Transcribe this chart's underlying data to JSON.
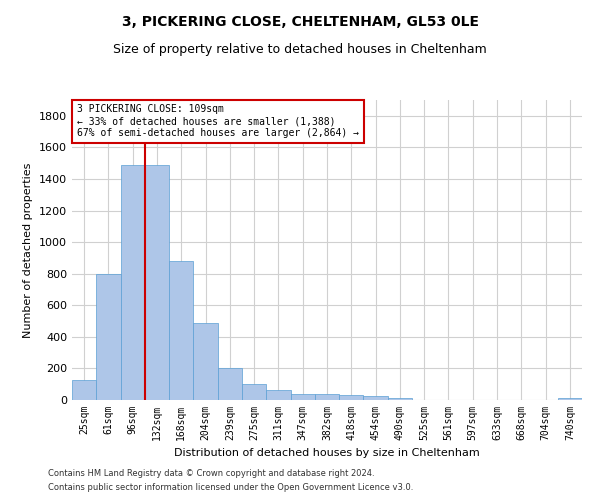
{
  "title1": "3, PICKERING CLOSE, CHELTENHAM, GL53 0LE",
  "title2": "Size of property relative to detached houses in Cheltenham",
  "xlabel": "Distribution of detached houses by size in Cheltenham",
  "ylabel": "Number of detached properties",
  "footnote1": "Contains HM Land Registry data © Crown copyright and database right 2024.",
  "footnote2": "Contains public sector information licensed under the Open Government Licence v3.0.",
  "categories": [
    "25sqm",
    "61sqm",
    "96sqm",
    "132sqm",
    "168sqm",
    "204sqm",
    "239sqm",
    "275sqm",
    "311sqm",
    "347sqm",
    "382sqm",
    "418sqm",
    "454sqm",
    "490sqm",
    "525sqm",
    "561sqm",
    "597sqm",
    "633sqm",
    "668sqm",
    "704sqm",
    "740sqm"
  ],
  "values": [
    125,
    800,
    1490,
    1490,
    880,
    490,
    205,
    100,
    65,
    40,
    35,
    30,
    25,
    10,
    0,
    0,
    0,
    0,
    0,
    0,
    15
  ],
  "bar_color": "#aec6e8",
  "bar_edgecolor": "#5a9fd4",
  "ylim": [
    0,
    1900
  ],
  "yticks": [
    0,
    200,
    400,
    600,
    800,
    1000,
    1200,
    1400,
    1600,
    1800
  ],
  "annotation_title": "3 PICKERING CLOSE: 109sqm",
  "annotation_line1": "← 33% of detached houses are smaller (1,388)",
  "annotation_line2": "67% of semi-detached houses are larger (2,864) →",
  "annotation_box_color": "#ffffff",
  "annotation_box_edgecolor": "#cc0000",
  "red_line_color": "#cc0000",
  "background_color": "#ffffff",
  "grid_color": "#d0d0d0",
  "title1_fontsize": 10,
  "title2_fontsize": 9,
  "ylabel_fontsize": 8,
  "xlabel_fontsize": 8,
  "tick_fontsize": 7,
  "footnote_fontsize": 6
}
